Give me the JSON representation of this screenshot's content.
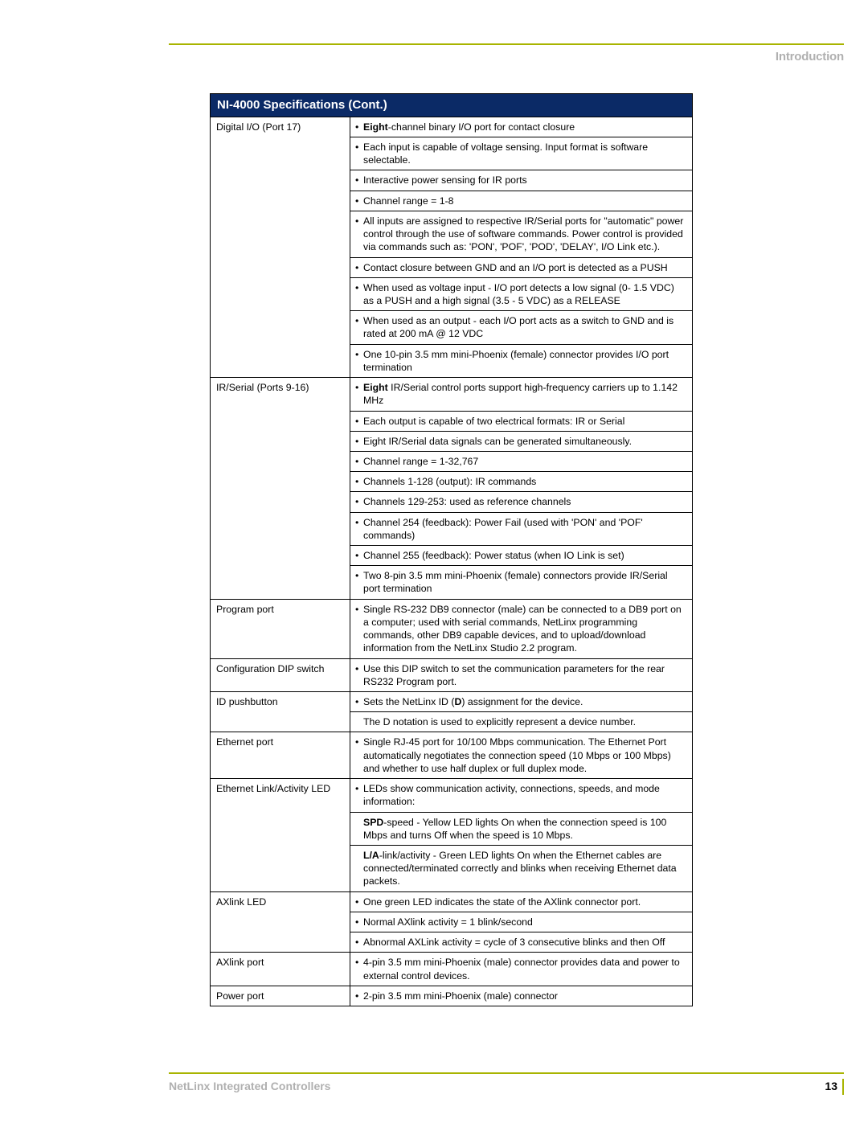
{
  "header": {
    "section_label": "Introduction"
  },
  "table": {
    "title": "NI-4000 Specifications (Cont.)",
    "title_bg": "#0b2a66",
    "title_color": "#ffffff",
    "border_color": "#000000",
    "font_size": 12.3,
    "rows": [
      {
        "label": "Digital I/O (Port 17)",
        "items": [
          {
            "bold_lead": "Eight",
            "text": "-channel binary I/O port for contact closure"
          },
          {
            "text": "Each input is capable of voltage sensing. Input format is software selectable."
          },
          {
            "text": "Interactive power sensing for IR ports"
          },
          {
            "text": "Channel range = 1-8"
          },
          {
            "text": "All inputs are assigned to respective IR/Serial ports for \"automatic\" power control through the use of software commands. Power control is provided via commands such as: 'PON', 'POF', 'POD', 'DELAY', I/O Link etc.)."
          },
          {
            "text": "Contact closure between GND and an I/O port is detected as a PUSH"
          },
          {
            "text": "When used as voltage input - I/O port detects a low signal (0- 1.5 VDC) as a PUSH and a high signal (3.5 - 5 VDC) as a RELEASE"
          },
          {
            "text": "When used as an output - each I/O port acts as a switch to GND and is rated at 200 mA @ 12 VDC"
          },
          {
            "text": "One 10-pin 3.5 mm mini-Phoenix (female) connector provides I/O port termination"
          }
        ]
      },
      {
        "label": "IR/Serial (Ports 9-16)",
        "items": [
          {
            "bold_lead": "Eight",
            "text": " IR/Serial control ports support high-frequency carriers up to 1.142 MHz"
          },
          {
            "text": "Each output is capable of two electrical formats: IR or Serial"
          },
          {
            "text": "Eight IR/Serial data signals can be generated simultaneously."
          },
          {
            "text": "Channel range = 1-32,767"
          },
          {
            "text": "Channels 1-128 (output): IR commands"
          },
          {
            "text": "Channels 129-253: used as reference channels"
          },
          {
            "text": "Channel 254 (feedback): Power Fail (used with 'PON' and 'POF' commands)"
          },
          {
            "text": "Channel 255 (feedback): Power status (when IO Link is set)"
          },
          {
            "text": "Two 8-pin 3.5 mm mini-Phoenix (female) connectors provide IR/Serial port termination"
          }
        ]
      },
      {
        "label": "Program port",
        "items": [
          {
            "text": "Single RS-232 DB9 connector (male) can be connected to a DB9 port on a computer; used with serial commands, NetLinx programming commands, other DB9 capable devices, and to upload/download information from the NetLinx Studio 2.2 program."
          }
        ]
      },
      {
        "label": "Configuration DIP switch",
        "items": [
          {
            "text": "Use this DIP switch to set the communication parameters for the rear RS232 Program port."
          }
        ]
      },
      {
        "label": "ID pushbutton",
        "items": [
          {
            "html": "Sets the NetLinx ID (<b>D</b>) assignment for the device."
          },
          {
            "nobullet": true,
            "text": "The D notation is used to explicitly represent a device number."
          }
        ]
      },
      {
        "label": "Ethernet port",
        "items": [
          {
            "text": "Single RJ-45 port for 10/100 Mbps communication. The Ethernet Port automatically negotiates the connection speed (10 Mbps or 100 Mbps) and whether to use half duplex or full duplex mode."
          }
        ]
      },
      {
        "label": "Ethernet Link/Activity LED",
        "items": [
          {
            "text": "LEDs show communication activity, connections, speeds, and mode information:"
          },
          {
            "nobullet": true,
            "html": "<b>SPD</b>-speed - Yellow LED lights On when the connection speed is 100 Mbps and turns Off when the speed is 10 Mbps."
          },
          {
            "nobullet": true,
            "html": "<b>L/A</b>-link/activity - Green LED lights On when the Ethernet cables are connected/terminated correctly and blinks when receiving Ethernet data packets."
          }
        ]
      },
      {
        "label": "AXlink LED",
        "items": [
          {
            "text": "One green LED indicates the state of the AXlink connector port."
          },
          {
            "text": "Normal AXlink activity = 1 blink/second"
          },
          {
            "text": "Abnormal AXLink activity = cycle of 3 consecutive blinks and then Off"
          }
        ]
      },
      {
        "label": "AXlink port",
        "items": [
          {
            "text": "4-pin 3.5 mm mini-Phoenix (male) connector provides data and power to external control devices."
          }
        ]
      },
      {
        "label": "Power port",
        "items": [
          {
            "text": "2-pin 3.5 mm mini-Phoenix (male) connector"
          }
        ]
      }
    ]
  },
  "footer": {
    "title": "NetLinx Integrated Controllers",
    "page": "13"
  },
  "colors": {
    "accent": "#a8b400",
    "muted_text": "#b0b0b0"
  }
}
